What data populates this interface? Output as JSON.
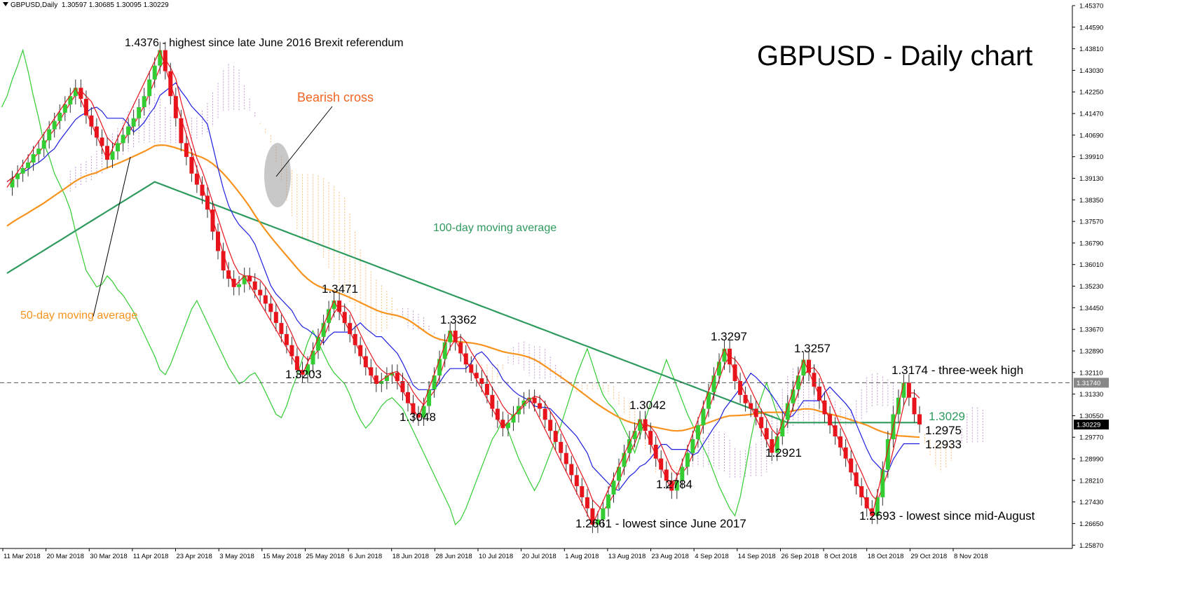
{
  "header": {
    "symbol": "GBPUSD,Daily",
    "ohlc": "1.30597 1.30685 1.30095 1.30229"
  },
  "chart_title": "GBPUSD - Daily chart",
  "chart_data": {
    "type": "candlestick",
    "title": "GBPUSD - Daily chart",
    "ylim": [
      1.2575,
      1.4537
    ],
    "y_ticks": [
      "1.45370",
      "1.44590",
      "1.43810",
      "1.43030",
      "1.42250",
      "1.41470",
      "1.40690",
      "1.39910",
      "1.39130",
      "1.38350",
      "1.37570",
      "1.36790",
      "1.36010",
      "1.35230",
      "1.34450",
      "1.33670",
      "1.32890",
      "1.32110",
      "1.31330",
      "1.30550",
      "1.29770",
      "1.28990",
      "1.28210",
      "1.27430",
      "1.26650",
      "1.25870"
    ],
    "x_ticks": [
      "11 Mar 2018",
      "20 Mar 2018",
      "30 Mar 2018",
      "11 Apr 2018",
      "23 Apr 2018",
      "3 May 2018",
      "15 May 2018",
      "25 May 2018",
      "6 Jun 2018",
      "18 Jun 2018",
      "28 Jun 2018",
      "10 Jul 2018",
      "20 Jul 2018",
      "1 Aug 2018",
      "13 Aug 2018",
      "23 Aug 2018",
      "4 Sep 2018",
      "14 Sep 2018",
      "26 Sep 2018",
      "8 Oct 2018",
      "18 Oct 2018",
      "29 Oct 2018",
      "8 Nov 2018"
    ],
    "price_label_current": "1.30229",
    "price_label_line": "1.31740",
    "horizontal_line": 1.3174,
    "close_series": [
      1.388,
      1.391,
      1.393,
      1.395,
      1.397,
      1.4,
      1.402,
      1.405,
      1.409,
      1.412,
      1.415,
      1.418,
      1.421,
      1.424,
      1.42,
      1.414,
      1.41,
      1.406,
      1.403,
      1.398,
      1.401,
      1.404,
      1.407,
      1.41,
      1.413,
      1.417,
      1.421,
      1.427,
      1.432,
      1.4376,
      1.43,
      1.421,
      1.413,
      1.404,
      1.399,
      1.393,
      1.389,
      1.385,
      1.38,
      1.372,
      1.365,
      1.358,
      1.355,
      1.352,
      1.353,
      1.356,
      1.354,
      1.351,
      1.349,
      1.346,
      1.343,
      1.339,
      1.335,
      1.331,
      1.327,
      1.322,
      1.3203,
      1.324,
      1.329,
      1.334,
      1.339,
      1.344,
      1.3471,
      1.343,
      1.339,
      1.335,
      1.331,
      1.327,
      1.323,
      1.32,
      1.317,
      1.318,
      1.32,
      1.321,
      1.318,
      1.314,
      1.31,
      1.306,
      1.3048,
      1.309,
      1.315,
      1.32,
      1.326,
      1.332,
      1.3362,
      1.332,
      1.328,
      1.324,
      1.321,
      1.319,
      1.317,
      1.313,
      1.308,
      1.304,
      1.301,
      1.303,
      1.306,
      1.309,
      1.311,
      1.312,
      1.31,
      1.308,
      1.304,
      1.3,
      1.296,
      1.292,
      1.288,
      1.284,
      1.28,
      1.276,
      1.272,
      1.2661,
      1.268,
      1.272,
      1.277,
      1.282,
      1.287,
      1.292,
      1.297,
      1.3,
      1.3042,
      1.3,
      1.295,
      1.29,
      1.286,
      1.282,
      1.2784,
      1.282,
      1.287,
      1.292,
      1.297,
      1.302,
      1.308,
      1.314,
      1.32,
      1.325,
      1.3297,
      1.324,
      1.318,
      1.313,
      1.31,
      1.308,
      1.305,
      1.301,
      1.297,
      1.2921,
      1.298,
      1.304,
      1.31,
      1.315,
      1.32,
      1.3257,
      1.321,
      1.316,
      1.311,
      1.306,
      1.302,
      1.298,
      1.294,
      1.29,
      1.285,
      1.28,
      1.276,
      1.272,
      1.2693,
      1.276,
      1.286,
      1.297,
      1.306,
      1.312,
      1.3174,
      1.312,
      1.306,
      1.3023
    ],
    "series": [
      {
        "name": "100-day moving average",
        "color": "#2e9a5e"
      },
      {
        "name": "50-day moving average",
        "color": "#f7931e"
      },
      {
        "name": "Tenkan-sen",
        "color": "#e8141c"
      },
      {
        "name": "Kijun-sen",
        "color": "#1f1fe0"
      },
      {
        "name": "Chikou span",
        "color": "#33cc33"
      }
    ],
    "colors": {
      "bull": "#33cc33",
      "bear": "#e8141c",
      "cloud_bear": "#f7931e",
      "cloud_bull": "#9b59b6",
      "zigzag": "#e8141c"
    },
    "annotations": [
      {
        "text": "1.4376 - highest since late June 2016 Brexit referendum",
        "color": "#000000"
      },
      {
        "text": "Bearish cross",
        "color": "#f26522"
      },
      {
        "text": "100-day moving average",
        "color": "#2e9a5e"
      },
      {
        "text": "50-day moving average",
        "color": "#f7931e"
      },
      {
        "text": "1.3471",
        "color": "#000000"
      },
      {
        "text": "1.3203",
        "color": "#000000"
      },
      {
        "text": "1.3362",
        "color": "#000000"
      },
      {
        "text": "1.3048",
        "color": "#000000"
      },
      {
        "text": "1.3297",
        "color": "#000000"
      },
      {
        "text": "1.3257",
        "color": "#000000"
      },
      {
        "text": "1.3042",
        "color": "#000000"
      },
      {
        "text": "1.2784",
        "color": "#000000"
      },
      {
        "text": "1.2921",
        "color": "#000000"
      },
      {
        "text": "1.2661 - lowest since June 2017",
        "color": "#000000"
      },
      {
        "text": "1.3174 - three-week high",
        "color": "#000000"
      },
      {
        "text": "1.3029",
        "color": "#2e9a5e"
      },
      {
        "text": "1.2975",
        "color": "#000000"
      },
      {
        "text": "1.2933",
        "color": "#000000"
      },
      {
        "text": "1.2693 - lowest since mid-August",
        "color": "#000000"
      }
    ],
    "grid": false,
    "legend": "none"
  }
}
